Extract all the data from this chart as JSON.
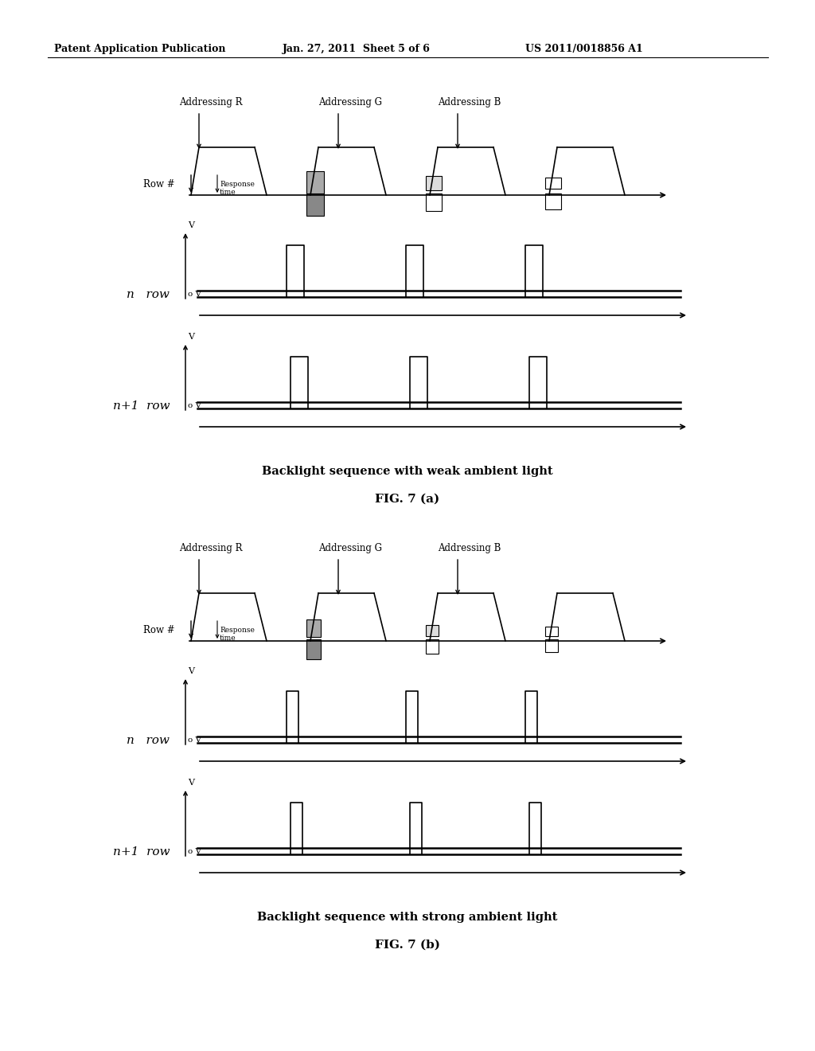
{
  "header_left": "Patent Application Publication",
  "header_mid": "Jan. 27, 2011  Sheet 5 of 6",
  "header_right": "US 2011/0018856 A1",
  "fig_a_caption": "Backlight sequence with weak ambient light",
  "fig_a_label": "FIG. 7 (a)",
  "fig_b_caption": "Backlight sequence with strong ambient light",
  "fig_b_label": "FIG. 7 (b)",
  "row_hash_label": "Row #",
  "response_time_label": "Response\ntime",
  "n_row_label": "n   row",
  "n1_row_label": "n+1  row",
  "v_label": "V",
  "ov_label": "o V",
  "bg_color": "#ffffff"
}
